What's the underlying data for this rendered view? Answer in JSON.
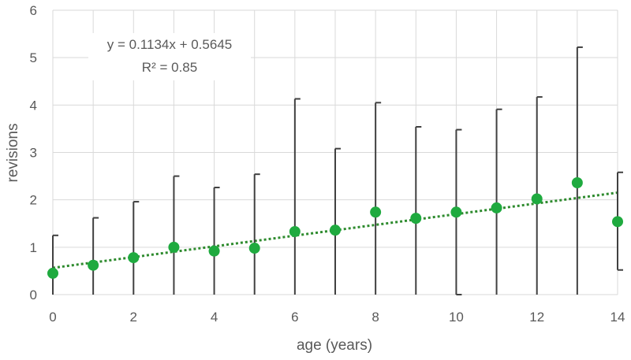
{
  "chart_data": {
    "type": "scatter",
    "title": "",
    "xlabel": "age (years)",
    "ylabel": "revisions",
    "xlim": [
      0,
      14
    ],
    "ylim": [
      0,
      6
    ],
    "xticks": [
      "0",
      "2",
      "4",
      "6",
      "8",
      "10",
      "12",
      "14"
    ],
    "yticks": [
      "0",
      "1",
      "2",
      "3",
      "4",
      "5",
      "6"
    ],
    "grid": true,
    "legend": "none",
    "points": [
      {
        "x": 0,
        "y": 0.45,
        "upper": 1.25,
        "lower": 0
      },
      {
        "x": 1,
        "y": 0.62,
        "upper": 1.62,
        "lower": 0
      },
      {
        "x": 2,
        "y": 0.78,
        "upper": 1.96,
        "lower": 0
      },
      {
        "x": 3,
        "y": 1.0,
        "upper": 2.5,
        "lower": 0
      },
      {
        "x": 4,
        "y": 0.92,
        "upper": 2.26,
        "lower": 0
      },
      {
        "x": 5,
        "y": 0.98,
        "upper": 2.54,
        "lower": 0
      },
      {
        "x": 6,
        "y": 1.33,
        "upper": 4.13,
        "lower": 0
      },
      {
        "x": 7,
        "y": 1.36,
        "upper": 3.08,
        "lower": 0
      },
      {
        "x": 8,
        "y": 1.74,
        "upper": 4.05,
        "lower": 0
      },
      {
        "x": 9,
        "y": 1.61,
        "upper": 3.54,
        "lower": 0
      },
      {
        "x": 10,
        "y": 1.74,
        "upper": 3.48,
        "lower": 0.0
      },
      {
        "x": 11,
        "y": 1.83,
        "upper": 3.91,
        "lower": 0
      },
      {
        "x": 12,
        "y": 2.02,
        "upper": 4.17,
        "lower": 0
      },
      {
        "x": 13,
        "y": 2.36,
        "upper": 5.22,
        "lower": 0
      },
      {
        "x": 14,
        "y": 1.54,
        "upper": 2.58,
        "lower": 0.52
      }
    ],
    "trendline": {
      "type": "linear",
      "slope": 0.1134,
      "intercept": 0.5645,
      "equation": "y = 0.1134x + 0.5645",
      "r_squared": "R² = 0.85"
    },
    "colors": {
      "points": "#1faa3f",
      "trendline": "#2e8b2e",
      "error_bars": "#404040",
      "grid": "#d9d9d9",
      "text": "#595959"
    }
  }
}
